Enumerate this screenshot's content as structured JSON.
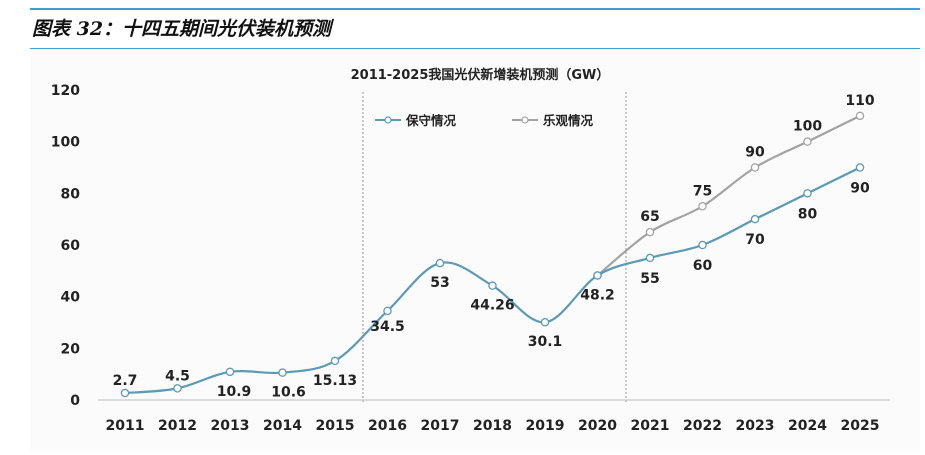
{
  "figure": {
    "title": "图表 32：十四五期间光伏装机预测"
  },
  "colors": {
    "accent": "#3aa0d6",
    "conservative": "#5a9ab5",
    "optimistic": "#a3a3a3"
  },
  "chart_data": {
    "type": "line",
    "title": "2011-2025我国光伏新增装机预测（GW）",
    "xlabel": "",
    "ylabel": "",
    "ylim": [
      0,
      120
    ],
    "yticks": [
      0,
      20,
      40,
      60,
      80,
      100,
      120
    ],
    "categories": [
      "2011",
      "2012",
      "2013",
      "2014",
      "2015",
      "2016",
      "2017",
      "2018",
      "2019",
      "2020",
      "2021",
      "2022",
      "2023",
      "2024",
      "2025"
    ],
    "series": [
      {
        "name": "保守情况",
        "values": [
          2.7,
          4.5,
          10.9,
          10.6,
          15.13,
          34.5,
          53,
          44.26,
          30.1,
          48.2,
          55,
          60,
          70,
          80,
          90
        ],
        "labels": [
          "2.7",
          "4.5",
          "10.9",
          "10.6",
          "15.13",
          "34.5",
          "53",
          "44.26",
          "30.1",
          "48.2",
          "55",
          "60",
          "70",
          "80",
          "90"
        ]
      },
      {
        "name": "乐观情况",
        "values": [
          null,
          null,
          null,
          null,
          null,
          null,
          null,
          null,
          null,
          48.2,
          65,
          75,
          90,
          100,
          110
        ],
        "labels": [
          "",
          "",
          "",
          "",
          "",
          "",
          "",
          "",
          "",
          "",
          "65",
          "75",
          "90",
          "100",
          "110"
        ]
      }
    ],
    "grid": false,
    "legend_position": "top-right"
  }
}
